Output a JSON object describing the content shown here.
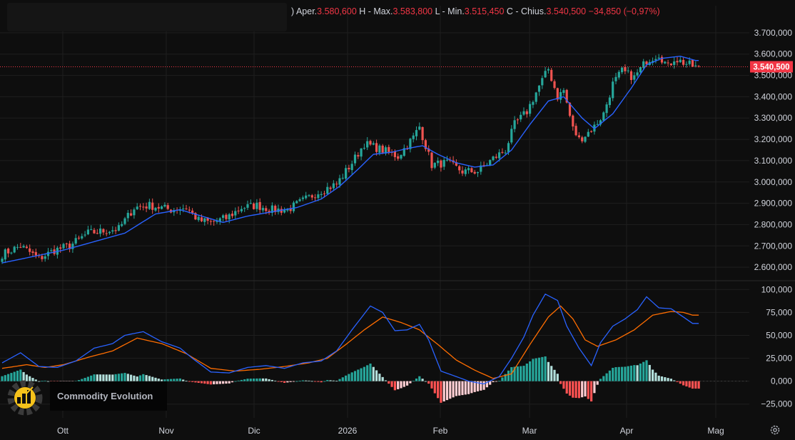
{
  "ohlc": {
    "open_label": "Aper.",
    "open": "3.580,600",
    "high_label": "H - Max.",
    "high": "3.583,800",
    "low_label": "L - Min.",
    "low": "3.515,450",
    "close_label": "C - Chius.",
    "close": "3.540,500",
    "change": "−34,850 (−0,97%)",
    "prefix": ")"
  },
  "watermark": {
    "text": "Commodity Evolution",
    "logo": "gear-chart-logo-icon"
  },
  "colors": {
    "up": "#26a69a",
    "down": "#ef5350",
    "ma": "#2962ff",
    "macd": "#2962ff",
    "signal": "#ff6d00",
    "hist_up_strong": "#26a69a",
    "hist_up_weak": "#b2dfdb",
    "hist_down_strong": "#ff5252",
    "hist_down_weak": "#ffcdd2",
    "price_tag": "#f23645",
    "background": "#0e0e0e",
    "grid": "#1e1e1e"
  },
  "chart_data": [
    {
      "type": "candlestick",
      "ylim": [
        2540000,
        3760000
      ],
      "y_ticks": [
        "3.700,000",
        "3.600,000",
        "3.500,000",
        "3.400,000",
        "3.300,000",
        "3.200,000",
        "3.100,000",
        "3.000,000",
        "2.900,000",
        "2.800,000",
        "2.700,000",
        "2.600,000"
      ],
      "y_tick_values": [
        3700000,
        3600000,
        3500000,
        3400000,
        3300000,
        3200000,
        3100000,
        3000000,
        2900000,
        2800000,
        2700000,
        2600000
      ],
      "x_labels": [
        "Ott",
        "Nov",
        "Dic",
        "2026",
        "Feb",
        "Mar",
        "Apr",
        "Mag"
      ],
      "last_price_label": "3.540,500",
      "last_price": 3540500,
      "close_anchors": [
        [
          0,
          2660000
        ],
        [
          6,
          2700000
        ],
        [
          9,
          2670000
        ],
        [
          12,
          2640000
        ],
        [
          17,
          2680000
        ],
        [
          22,
          2700000
        ],
        [
          28,
          2760000
        ],
        [
          33,
          2770000
        ],
        [
          38,
          2780000
        ],
        [
          43,
          2880000
        ],
        [
          48,
          2890000
        ],
        [
          55,
          2870000
        ],
        [
          60,
          2880000
        ],
        [
          64,
          2820000
        ],
        [
          68,
          2810000
        ],
        [
          73,
          2830000
        ],
        [
          78,
          2880000
        ],
        [
          83,
          2890000
        ],
        [
          88,
          2870000
        ],
        [
          93,
          2870000
        ],
        [
          99,
          2920000
        ],
        [
          104,
          2960000
        ],
        [
          109,
          2990000
        ],
        [
          114,
          3090000
        ],
        [
          118,
          3180000
        ],
        [
          124,
          3150000
        ],
        [
          129,
          3120000
        ],
        [
          134,
          3210000
        ],
        [
          136,
          3260000
        ],
        [
          138,
          3170000
        ],
        [
          140,
          3080000
        ],
        [
          145,
          3090000
        ],
        [
          150,
          3050000
        ],
        [
          155,
          3050000
        ],
        [
          160,
          3110000
        ],
        [
          164,
          3150000
        ],
        [
          167,
          3270000
        ],
        [
          171,
          3330000
        ],
        [
          175,
          3450000
        ],
        [
          178,
          3530000
        ],
        [
          181,
          3400000
        ],
        [
          183,
          3430000
        ],
        [
          186,
          3250000
        ],
        [
          188,
          3200000
        ],
        [
          190,
          3220000
        ],
        [
          193,
          3260000
        ],
        [
          196,
          3320000
        ],
        [
          199,
          3460000
        ],
        [
          202,
          3520000
        ],
        [
          206,
          3490000
        ],
        [
          210,
          3570000
        ],
        [
          214,
          3600000
        ],
        [
          217,
          3540000
        ],
        [
          219,
          3580000
        ],
        [
          222,
          3560000
        ],
        [
          226,
          3540000
        ]
      ],
      "ma_anchors": [
        [
          0,
          2620000
        ],
        [
          10,
          2650000
        ],
        [
          20,
          2680000
        ],
        [
          30,
          2720000
        ],
        [
          40,
          2760000
        ],
        [
          50,
          2850000
        ],
        [
          58,
          2870000
        ],
        [
          65,
          2840000
        ],
        [
          72,
          2810000
        ],
        [
          80,
          2840000
        ],
        [
          88,
          2860000
        ],
        [
          96,
          2880000
        ],
        [
          104,
          2920000
        ],
        [
          110,
          2980000
        ],
        [
          116,
          3060000
        ],
        [
          121,
          3130000
        ],
        [
          127,
          3140000
        ],
        [
          133,
          3160000
        ],
        [
          137,
          3170000
        ],
        [
          142,
          3130000
        ],
        [
          148,
          3090000
        ],
        [
          154,
          3070000
        ],
        [
          160,
          3080000
        ],
        [
          166,
          3150000
        ],
        [
          172,
          3270000
        ],
        [
          178,
          3380000
        ],
        [
          183,
          3400000
        ],
        [
          189,
          3300000
        ],
        [
          193,
          3250000
        ],
        [
          199,
          3320000
        ],
        [
          205,
          3440000
        ],
        [
          210,
          3550000
        ],
        [
          215,
          3580000
        ],
        [
          221,
          3590000
        ],
        [
          226,
          3570000
        ]
      ]
    },
    {
      "type": "line+histogram",
      "title": "",
      "ylim": [
        -40000,
        108000
      ],
      "y_ticks": [
        "100,000",
        "75,000",
        "50,000",
        "25,000",
        "0,000",
        "−25,000"
      ],
      "y_tick_values": [
        100000,
        75000,
        50000,
        25000,
        0,
        -25000
      ],
      "series": [
        {
          "role": "macd",
          "anchors": [
            [
              0,
              20000
            ],
            [
              6,
              31000
            ],
            [
              12,
              16000
            ],
            [
              18,
              15000
            ],
            [
              24,
              22000
            ],
            [
              30,
              36000
            ],
            [
              36,
              41000
            ],
            [
              40,
              50000
            ],
            [
              46,
              54000
            ],
            [
              52,
              43000
            ],
            [
              58,
              36000
            ],
            [
              62,
              25000
            ],
            [
              68,
              10000
            ],
            [
              74,
              9000
            ],
            [
              80,
              15000
            ],
            [
              86,
              17000
            ],
            [
              92,
              14000
            ],
            [
              98,
              20000
            ],
            [
              104,
              22000
            ],
            [
              109,
              33000
            ],
            [
              114,
              56000
            ],
            [
              120,
              82000
            ],
            [
              124,
              75000
            ],
            [
              128,
              55000
            ],
            [
              132,
              56000
            ],
            [
              136,
              62000
            ],
            [
              139,
              45000
            ],
            [
              143,
              11000
            ],
            [
              148,
              5000
            ],
            [
              152,
              0
            ],
            [
              157,
              -3000
            ],
            [
              162,
              5000
            ],
            [
              166,
              25000
            ],
            [
              170,
              48000
            ],
            [
              173,
              72000
            ],
            [
              177,
              95000
            ],
            [
              181,
              88000
            ],
            [
              184,
              60000
            ],
            [
              188,
              36000
            ],
            [
              192,
              17000
            ],
            [
              195,
              42000
            ],
            [
              199,
              60000
            ],
            [
              203,
              68000
            ],
            [
              207,
              78000
            ],
            [
              210,
              92000
            ],
            [
              214,
              80000
            ],
            [
              218,
              79000
            ],
            [
              222,
              70000
            ],
            [
              225,
              63000
            ]
          ]
        },
        {
          "role": "signal",
          "anchors": [
            [
              0,
              14000
            ],
            [
              8,
              18000
            ],
            [
              14,
              15000
            ],
            [
              20,
              18000
            ],
            [
              28,
              26000
            ],
            [
              36,
              33000
            ],
            [
              44,
              47000
            ],
            [
              52,
              41000
            ],
            [
              60,
              30000
            ],
            [
              68,
              14000
            ],
            [
              76,
              11000
            ],
            [
              84,
              13000
            ],
            [
              92,
              16000
            ],
            [
              100,
              20000
            ],
            [
              106,
              25000
            ],
            [
              112,
              40000
            ],
            [
              118,
              56000
            ],
            [
              124,
              70000
            ],
            [
              130,
              64000
            ],
            [
              136,
              56000
            ],
            [
              142,
              40000
            ],
            [
              148,
              23000
            ],
            [
              154,
              12000
            ],
            [
              160,
              3000
            ],
            [
              166,
              8000
            ],
            [
              172,
              40000
            ],
            [
              178,
              70000
            ],
            [
              182,
              82000
            ],
            [
              186,
              68000
            ],
            [
              190,
              45000
            ],
            [
              194,
              38000
            ],
            [
              200,
              45000
            ],
            [
              206,
              56000
            ],
            [
              212,
              72000
            ],
            [
              218,
              76000
            ],
            [
              222,
              75000
            ],
            [
              225,
              72000
            ]
          ]
        }
      ]
    }
  ]
}
